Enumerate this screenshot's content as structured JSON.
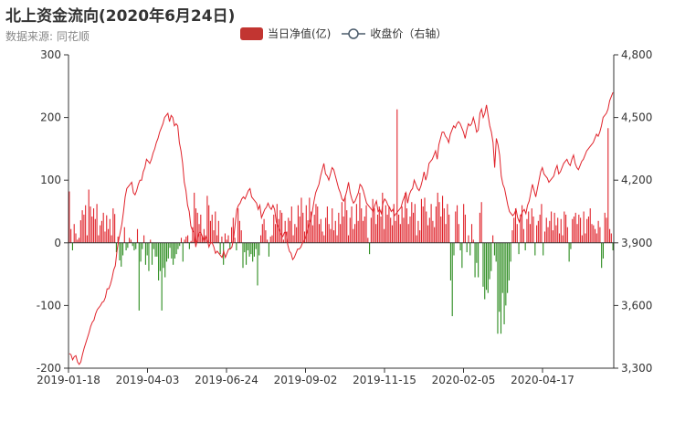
{
  "title": "北上资金流向(2020年6月24日)",
  "subtitle": "数据来源: 同花顺",
  "legend": {
    "bar_label": "当日净值(亿)",
    "line_label": "收盘价（右轴）"
  },
  "colors": {
    "up_bar": "#e0232b",
    "down_bar": "#2a8b1d",
    "line": "#e0232b",
    "legend_bar": "#c23531"
  },
  "chart_data": {
    "type": "bar+line",
    "x_tick_labels": [
      "2019-01-18",
      "2019-04-03",
      "2019-06-24",
      "2019-09-02",
      "2019-11-15",
      "2020-02-05",
      "2020-04-17"
    ],
    "left_axis": {
      "ylim": [
        -200,
        300
      ],
      "ticks": [
        -200,
        -100,
        0,
        100,
        200,
        300
      ]
    },
    "right_axis": {
      "ylim": [
        3300,
        4800
      ],
      "ticks": [
        "3,300",
        "3,600",
        "3,900",
        "4,200",
        "4,500",
        "4,800"
      ]
    },
    "series": [
      {
        "name": "当日净值(亿)",
        "type": "bar",
        "axis": "left",
        "values": [
          82,
          22,
          -12,
          30,
          15,
          5,
          8,
          36,
          52,
          45,
          60,
          12,
          85,
          58,
          42,
          55,
          38,
          62,
          12,
          28,
          35,
          48,
          18,
          44,
          22,
          38,
          12,
          55,
          46,
          -15,
          10,
          -28,
          -38,
          -20,
          25,
          -12,
          -8,
          8,
          5,
          -5,
          -12,
          -10,
          22,
          -108,
          -30,
          -10,
          12,
          -35,
          -20,
          -45,
          5,
          -35,
          -10,
          -22,
          -22,
          -60,
          -45,
          -108,
          -40,
          -55,
          -30,
          -25,
          -8,
          -25,
          -35,
          -25,
          -18,
          -10,
          -5,
          8,
          -30,
          5,
          10,
          12,
          -10,
          3,
          25,
          80,
          55,
          48,
          30,
          45,
          10,
          22,
          12,
          75,
          60,
          35,
          45,
          20,
          50,
          12,
          35,
          -18,
          10,
          -35,
          15,
          5,
          12,
          -10,
          25,
          40,
          8,
          -12,
          55,
          35,
          20,
          -40,
          -15,
          -35,
          -12,
          -22,
          -18,
          -30,
          -22,
          -10,
          -68,
          -20,
          12,
          30,
          38,
          20,
          5,
          -22,
          10,
          12,
          45,
          30,
          62,
          38,
          52,
          48,
          5,
          35,
          18,
          40,
          35,
          58,
          12,
          30,
          25,
          60,
          42,
          72,
          48,
          18,
          60,
          36,
          72,
          50,
          28,
          45,
          62,
          58,
          30,
          38,
          18,
          12,
          40,
          58,
          30,
          22,
          55,
          20,
          35,
          12,
          48,
          30,
          65,
          42,
          75,
          52,
          12,
          40,
          58,
          22,
          30,
          62,
          35,
          80,
          55,
          35,
          42,
          60,
          8,
          -18,
          40,
          70,
          55,
          30,
          45,
          58,
          42,
          80,
          22,
          60,
          45,
          58,
          40,
          28,
          62,
          35,
          213,
          45,
          30,
          58,
          40,
          80,
          55,
          30,
          42,
          65,
          48,
          62,
          12,
          35,
          20,
          70,
          58,
          72,
          50,
          28,
          40,
          62,
          35,
          25,
          58,
          80,
          65,
          42,
          75,
          55,
          30,
          62,
          45,
          -60,
          -117,
          -20,
          50,
          60,
          30,
          -12,
          -40,
          62,
          45,
          -15,
          12,
          -20,
          30,
          5,
          -55,
          -32,
          -55,
          48,
          65,
          -70,
          -90,
          -75,
          -80,
          -58,
          -45,
          12,
          -20,
          -30,
          -145,
          -110,
          -145,
          -80,
          -130,
          -100,
          -80,
          -60,
          -30,
          20,
          40,
          55,
          30,
          -18,
          45,
          60,
          22,
          -12,
          38,
          50,
          30,
          55,
          42,
          -20,
          28,
          35,
          45,
          62,
          -20,
          18,
          40,
          25,
          35,
          50,
          20,
          48,
          28,
          40,
          15,
          38,
          12,
          50,
          45,
          25,
          -30,
          -10,
          38,
          42,
          48,
          30,
          45,
          40,
          12,
          50,
          15,
          38,
          42,
          55,
          30,
          28,
          22,
          15,
          35,
          25,
          -40,
          -25,
          48,
          40,
          183,
          22,
          15,
          -12
        ]
      },
      {
        "name": "收盘价（右轴）",
        "type": "line",
        "axis": "right",
        "values": [
          3370,
          3365,
          3340,
          3355,
          3360,
          3330,
          3318,
          3330,
          3365,
          3395,
          3420,
          3445,
          3470,
          3500,
          3520,
          3530,
          3560,
          3580,
          3590,
          3600,
          3615,
          3620,
          3640,
          3680,
          3680,
          3700,
          3730,
          3770,
          3790,
          3860,
          3910,
          3950,
          3990,
          4050,
          4120,
          4160,
          4170,
          4180,
          4190,
          4140,
          4130,
          4150,
          4180,
          4200,
          4200,
          4240,
          4260,
          4300,
          4290,
          4280,
          4300,
          4330,
          4350,
          4380,
          4400,
          4430,
          4450,
          4470,
          4500,
          4510,
          4520,
          4480,
          4510,
          4500,
          4460,
          4470,
          4460,
          4380,
          4340,
          4280,
          4190,
          4150,
          4080,
          4050,
          3980,
          3960,
          3950,
          3880,
          3920,
          3950,
          3950,
          3930,
          3910,
          3930,
          3920,
          3880,
          3900,
          3900,
          3880,
          3850,
          3860,
          3850,
          3840,
          3830,
          3860,
          3830,
          3850,
          3870,
          3870,
          3880,
          3920,
          3990,
          4060,
          4080,
          4090,
          4110,
          4120,
          4110,
          4130,
          4150,
          4160,
          4120,
          4110,
          4100,
          4090,
          4060,
          4080,
          4020,
          4040,
          4060,
          4070,
          4090,
          4070,
          4060,
          4080,
          4060,
          4000,
          3980,
          3960,
          3940,
          3930,
          3950,
          3950,
          3890,
          3860,
          3850,
          3820,
          3830,
          3850,
          3870,
          3870,
          3880,
          3900,
          3910,
          3930,
          3960,
          3990,
          4010,
          4050,
          4100,
          4140,
          4160,
          4180,
          4220,
          4250,
          4280,
          4230,
          4220,
          4200,
          4230,
          4260,
          4250,
          4220,
          4190,
          4160,
          4140,
          4110,
          4100,
          4120,
          4150,
          4190,
          4140,
          4110,
          4090,
          4100,
          4120,
          4140,
          4180,
          4170,
          4150,
          4120,
          4090,
          4080,
          4070,
          4060,
          4050,
          4080,
          4100,
          4050,
          4060,
          4040,
          4090,
          4110,
          4100,
          4080,
          4070,
          4050,
          4060,
          4030,
          4040,
          4050,
          4060,
          4070,
          4100,
          4120,
          4140,
          4090,
          4130,
          4150,
          4160,
          4200,
          4180,
          4160,
          4150,
          4170,
          4200,
          4240,
          4200,
          4230,
          4280,
          4290,
          4300,
          4320,
          4340,
          4300,
          4370,
          4400,
          4430,
          4430,
          4410,
          4400,
          4380,
          4420,
          4440,
          4460,
          4450,
          4470,
          4480,
          4470,
          4450,
          4430,
          4400,
          4440,
          4470,
          4460,
          4470,
          4500,
          4470,
          4430,
          4440,
          4520,
          4540,
          4500,
          4520,
          4560,
          4510,
          4460,
          4430,
          4380,
          4260,
          4400,
          4370,
          4320,
          4220,
          4180,
          4160,
          4120,
          4080,
          4050,
          4040,
          4030,
          4040,
          4060,
          4020,
          4000,
          4030,
          4050,
          4060,
          4040,
          4080,
          4100,
          4140,
          4180,
          4150,
          4120,
          4160,
          4200,
          4240,
          4260,
          4230,
          4220,
          4210,
          4190,
          4200,
          4210,
          4220,
          4250,
          4270,
          4230,
          4240,
          4260,
          4280,
          4290,
          4300,
          4280,
          4270,
          4300,
          4320,
          4280,
          4260,
          4250,
          4270,
          4290,
          4300,
          4320,
          4340,
          4350,
          4360,
          4370,
          4380,
          4400,
          4420,
          4410,
          4430,
          4460,
          4500,
          4510,
          4520,
          4540,
          4580,
          4600,
          4620
        ]
      }
    ],
    "grid": false,
    "legend_position": "top-center"
  }
}
